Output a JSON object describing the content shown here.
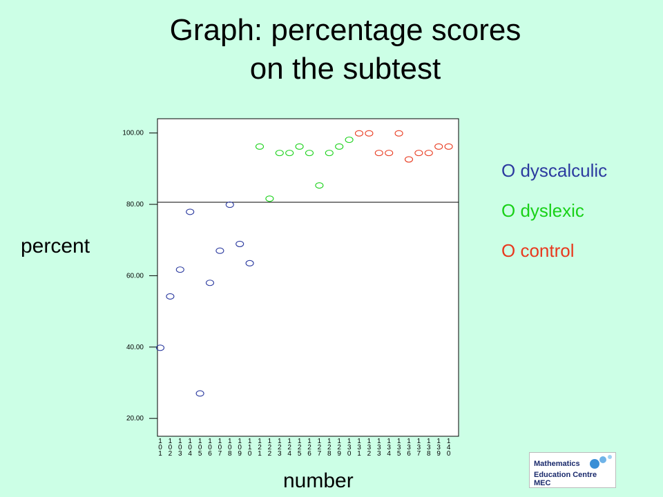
{
  "title_line1": "Graph: percentage scores",
  "title_line2": "on the subtest",
  "ylabel": "percent",
  "xlabel": "number",
  "legend": [
    {
      "label": "O dyscalculic",
      "color": "#2b3a9f"
    },
    {
      "label": "O dyslexic",
      "color": "#19d119"
    },
    {
      "label": "O control",
      "color": "#e8391e"
    }
  ],
  "logo": {
    "line1": "Mathematics",
    "line2": "Education Centre MEC"
  },
  "chart_data": {
    "type": "scatter",
    "title": "Graph: percentage scores on the subtest",
    "xlabel": "number",
    "ylabel": "percent",
    "ylim": [
      15,
      104
    ],
    "yticks": [
      "20.00",
      "40.00",
      "60.00",
      "80.00",
      "100.00"
    ],
    "reference_line_y": 80.6,
    "categories": [
      "101",
      "102",
      "103",
      "104",
      "105",
      "106",
      "107",
      "108",
      "109",
      "110",
      "121",
      "122",
      "123",
      "124",
      "125",
      "126",
      "127",
      "128",
      "129",
      "130",
      "131",
      "132",
      "133",
      "134",
      "135",
      "136",
      "137",
      "138",
      "139",
      "140"
    ],
    "series": [
      {
        "name": "dyscalculic",
        "color": "#2b3a9f",
        "values": [
          39.8,
          54.2,
          61.7,
          77.9,
          27.0,
          58.0,
          67.0,
          79.9,
          68.9,
          63.5
        ]
      },
      {
        "name": "dyslexic",
        "color": "#19d119",
        "values": [
          96.2,
          81.6,
          94.4,
          94.4,
          96.2,
          94.4,
          85.3,
          94.4,
          96.2,
          98.1
        ]
      },
      {
        "name": "control",
        "color": "#e8391e",
        "values": [
          99.9,
          99.9,
          94.4,
          94.4,
          99.9,
          92.6,
          94.4,
          94.4,
          96.2,
          96.2
        ]
      }
    ]
  }
}
